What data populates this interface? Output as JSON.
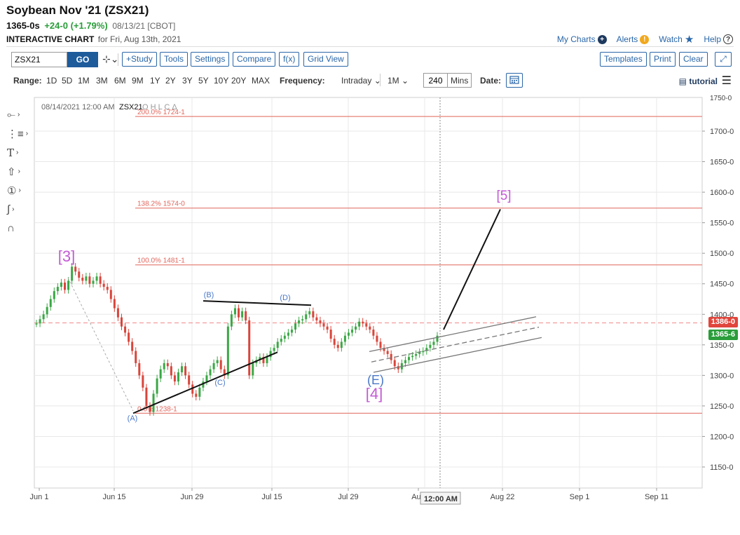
{
  "header": {
    "title": "Soybean Nov '21 (ZSX21)",
    "last": "1365-0s",
    "change": "+24-0 (+1.79%)",
    "date_exchange": "08/13/21 [CBOT]",
    "chart_type": "INTERACTIVE CHART",
    "chart_date": "for Fri, Aug 13th, 2021"
  },
  "top_links": {
    "my_charts": "My Charts",
    "alerts": "Alerts",
    "watch": "Watch",
    "help": "Help"
  },
  "toolbar": {
    "symbol": "ZSX21",
    "go": "GO",
    "study": "+Study",
    "tools": "Tools",
    "settings": "Settings",
    "compare": "Compare",
    "fx": "f(x)",
    "grid_view": "Grid View",
    "templates": "Templates",
    "print": "Print",
    "clear": "Clear"
  },
  "range_bar": {
    "range_label": "Range:",
    "ranges": [
      "1D",
      "5D",
      "1M",
      "3M",
      "6M",
      "9M",
      "1Y",
      "2Y",
      "3Y",
      "5Y",
      "10Y",
      "20Y",
      "MAX"
    ],
    "frequency_label": "Frequency:",
    "frequency": "Intraday",
    "interval": "1M",
    "minutes": "240",
    "minutes_unit": "Mins",
    "date_label": "Date:",
    "tutorial": "tutorial"
  },
  "chart_data": {
    "type": "line",
    "legend_text": "08/14/2021 12:00 AM",
    "legend_symbol": "ZSX21",
    "legend_ohlc": "O H L C Δ",
    "y_ticks": [
      1700,
      1650,
      1600,
      1550,
      1500,
      1450,
      1400,
      1350,
      1300,
      1250,
      1200,
      1150
    ],
    "y_tick_labels": [
      "1700-0",
      "1650-0",
      "1600-0",
      "1550-0",
      "1500-0",
      "1450-0",
      "1400-0",
      "1350-0",
      "1300-0",
      "1250-0",
      "1200-0",
      "1150-0"
    ],
    "y_top_cut_label": "1750-0",
    "ylim": [
      1117,
      1755
    ],
    "x_labels": [
      "Jun 1",
      "Jun 15",
      "Jun 29",
      "Jul 15",
      "Jul 29",
      "Aug",
      "Aug 22",
      "Sep 1",
      "Sep 11"
    ],
    "crosshair_label": "12:00 AM",
    "fib_levels": [
      {
        "label": "200.0% 1724-1",
        "value": 1724
      },
      {
        "label": "138.2% 1574-0",
        "value": 1574
      },
      {
        "label": "100.0% 1481-1",
        "value": 1481
      },
      {
        "label": "0.0% 1238-1",
        "value": 1238
      }
    ],
    "price_tags": [
      {
        "label": "1386-0",
        "value": 1386,
        "color": "#e0463c"
      },
      {
        "label": "1365-6",
        "value": 1365.75,
        "color": "#2a9d3a"
      }
    ],
    "wave_labels": [
      {
        "text": "[3]",
        "color": "#c45ad6"
      },
      {
        "text": "[4]",
        "color": "#c45ad6"
      },
      {
        "text": "[5]",
        "color": "#c45ad6"
      },
      {
        "text": "(A)",
        "color": "#4a78c9"
      },
      {
        "text": "(B)",
        "color": "#4a78c9"
      },
      {
        "text": "(C)",
        "color": "#4a78c9"
      },
      {
        "text": "(D)",
        "color": "#4a78c9"
      },
      {
        "text": "(E)",
        "color": "#4a78c9"
      }
    ],
    "series": [
      {
        "values": [
          1385,
          1392,
          1400,
          1412,
          1425,
          1438,
          1445,
          1452,
          1440,
          1455,
          1478,
          1470,
          1460,
          1455,
          1462,
          1450,
          1455,
          1462,
          1450,
          1445,
          1440,
          1425,
          1410,
          1395,
          1380,
          1370,
          1355,
          1340,
          1320,
          1300,
          1280,
          1250,
          1240,
          1270,
          1295,
          1310,
          1320,
          1315,
          1300,
          1290,
          1305,
          1315,
          1300,
          1285,
          1270,
          1265,
          1280,
          1290,
          1300,
          1310,
          1320,
          1325,
          1310,
          1300,
          1380,
          1400,
          1410,
          1395,
          1405,
          1390,
          1300,
          1320,
          1325,
          1330,
          1320,
          1330,
          1340,
          1345,
          1355,
          1360,
          1365,
          1370,
          1375,
          1385,
          1390,
          1392,
          1400,
          1405,
          1395,
          1390,
          1385,
          1380,
          1375,
          1360,
          1350,
          1345,
          1355,
          1365,
          1370,
          1375,
          1380,
          1388,
          1385,
          1380,
          1375,
          1365,
          1355,
          1345,
          1340,
          1335,
          1325,
          1315,
          1310,
          1320,
          1325,
          1330,
          1332,
          1335,
          1338,
          1340,
          1345,
          1350,
          1355,
          1365
        ]
      }
    ]
  }
}
